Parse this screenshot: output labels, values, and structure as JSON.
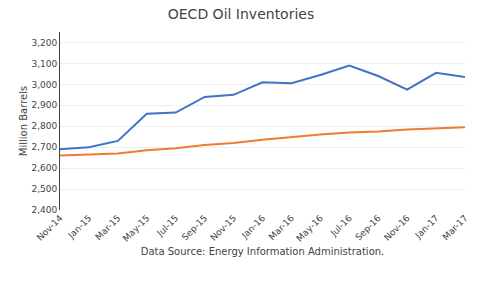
{
  "chart_data": {
    "type": "line",
    "title": "OECD Oil Inventories",
    "xlabel": "Data Source: Energy Information Administration.",
    "ylabel": "Million Barrels",
    "categories": [
      "Nov-14",
      "Jan-15",
      "Mar-15",
      "May-15",
      "Jul-15",
      "Sep-15",
      "Nov-15",
      "Jan-16",
      "Mar-16",
      "May-16",
      "Jul-16",
      "Sep-16",
      "Nov-16",
      "Jan-17",
      "Mar-17"
    ],
    "series": [
      {
        "color": "#4472C4",
        "values": [
          2690,
          2700,
          2730,
          2860,
          2865,
          2940,
          2950,
          3010,
          3005,
          3045,
          3090,
          3040,
          2975,
          3055,
          3035
        ]
      },
      {
        "color": "#ED7D31",
        "values": [
          2660,
          2665,
          2670,
          2685,
          2695,
          2710,
          2720,
          2735,
          2748,
          2760,
          2770,
          2775,
          2785,
          2790,
          2795
        ]
      }
    ],
    "ylim": [
      2400,
      3250
    ],
    "yticks": [
      {
        "value": 2400,
        "label": "2,400"
      },
      {
        "value": 2500,
        "label": "2,500"
      },
      {
        "value": 2600,
        "label": "2,600"
      },
      {
        "value": 2700,
        "label": "2,700"
      },
      {
        "value": 2800,
        "label": "2,800"
      },
      {
        "value": 2900,
        "label": "2,900"
      },
      {
        "value": 3000,
        "label": "3,000"
      },
      {
        "value": 3100,
        "label": "3,100"
      },
      {
        "value": 3200,
        "label": "3,200"
      }
    ],
    "grid": true
  }
}
